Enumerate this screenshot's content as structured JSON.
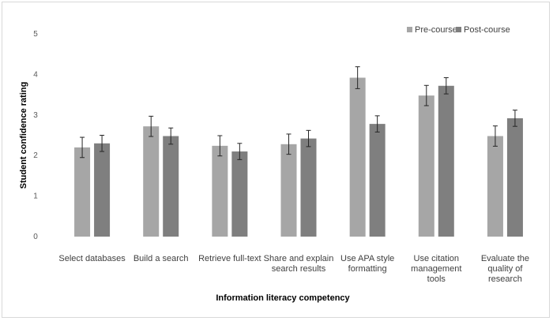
{
  "chart_data": {
    "type": "bar",
    "title": "",
    "xlabel": "Information literacy competency",
    "ylabel": "Student confidence rating",
    "ylim": [
      0,
      5
    ],
    "yticks": [
      0,
      1,
      2,
      3,
      4,
      5
    ],
    "grid": false,
    "legend_position": "top-right",
    "categories": [
      [
        "Select databases"
      ],
      [
        "Build a search"
      ],
      [
        "Retrieve full-text"
      ],
      [
        "Share and explain",
        "search results"
      ],
      [
        "Use APA style",
        "formatting"
      ],
      [
        "Use citation",
        "management",
        "tools"
      ],
      [
        "Evaluate the",
        "quality of",
        "research"
      ]
    ],
    "series": [
      {
        "name": "Pre-course",
        "color": "#a6a6a6",
        "values": [
          2.2,
          2.72,
          2.24,
          2.28,
          3.92,
          3.48,
          2.48
        ],
        "error": [
          0.25,
          0.25,
          0.25,
          0.25,
          0.27,
          0.25,
          0.25
        ]
      },
      {
        "name": "Post-course",
        "color": "#7f7f7f",
        "values": [
          2.3,
          2.48,
          2.1,
          2.42,
          2.78,
          3.72,
          2.92
        ],
        "error": [
          0.2,
          0.2,
          0.2,
          0.2,
          0.2,
          0.2,
          0.2
        ]
      }
    ]
  }
}
